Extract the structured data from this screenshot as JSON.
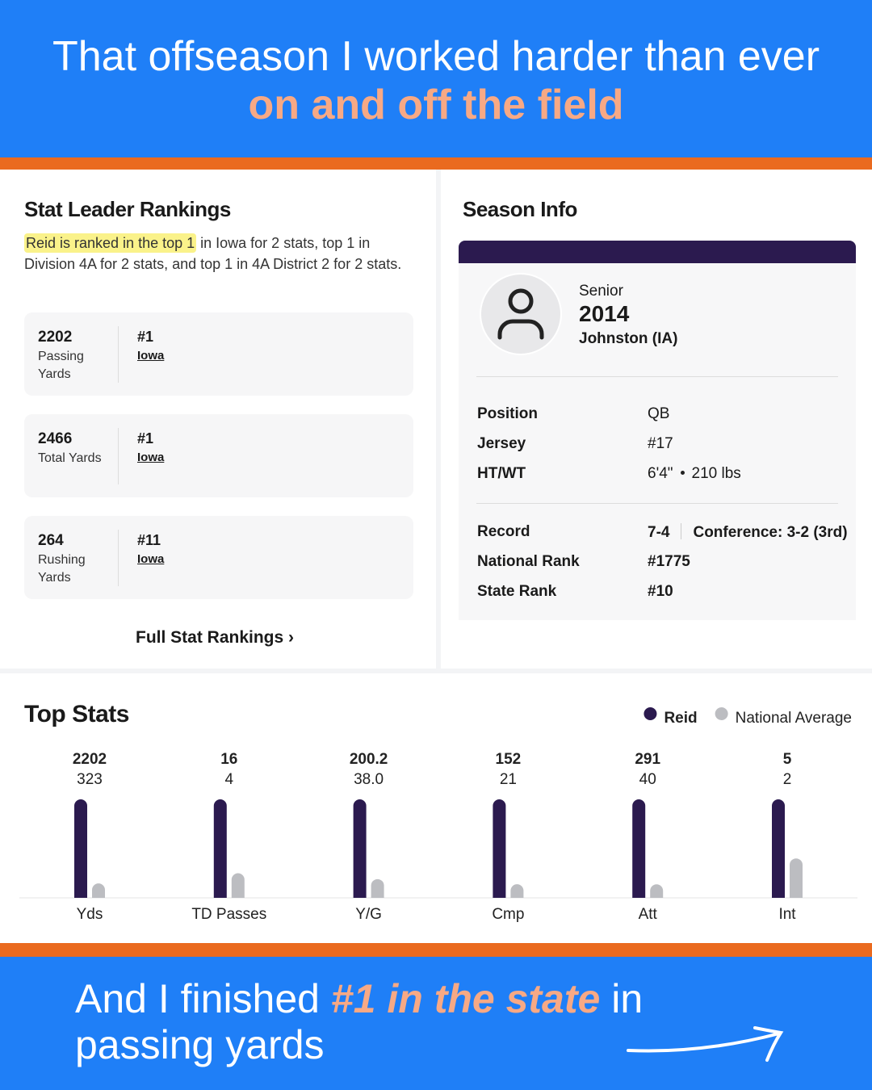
{
  "header": {
    "line1": "That offseason I worked harder than ever",
    "line2": "on and off the field"
  },
  "stat_rankings": {
    "title": "Stat Leader Rankings",
    "highlight": "Reid is ranked in the top 1",
    "description": " in Iowa for 2 stats, top 1 in Division 4A for 2 stats, and top 1 in 4A District 2 for 2 stats.",
    "items": [
      {
        "value": 2202,
        "label": "Passing Yards",
        "rank": "#1",
        "place": "Iowa"
      },
      {
        "value": 2466,
        "label": "Total Yards",
        "rank": "#1",
        "place": "Iowa"
      },
      {
        "value": 264,
        "label": "Rushing Yards",
        "rank": "#11",
        "place": "Iowa"
      }
    ],
    "link": "Full Stat Rankings"
  },
  "season_info": {
    "title": "Season Info",
    "class": "Senior",
    "year": 2014,
    "school": "Johnston (IA)",
    "rows": [
      {
        "label": "Position",
        "value": "QB"
      },
      {
        "label": "Jersey",
        "value": "#17"
      },
      {
        "label": "HT/WT",
        "value": "6'4\"",
        "extra": "210 lbs"
      }
    ],
    "team_rows": [
      {
        "label": "Record",
        "value": "7-4",
        "extra": "Conference: 3-2 (3rd)"
      },
      {
        "label": "National Rank",
        "value": "#1775"
      },
      {
        "label": "State Rank",
        "value": "#10"
      }
    ]
  },
  "top_stats": {
    "type": "bar",
    "title": "Top Stats",
    "categories": [
      "Yds",
      "TD Passes",
      "Y/G",
      "Cmp",
      "Att",
      "Int"
    ],
    "series": [
      {
        "name": "Reid",
        "color": "#2b1a4f",
        "values": [
          2202,
          16,
          200.2,
          152,
          291,
          5
        ]
      },
      {
        "name": "National Average",
        "color": "#bcbdc1",
        "values": [
          323,
          4,
          38.0,
          21,
          40,
          2
        ],
        "value_labels": [
          "323",
          "4",
          "38.0",
          "21",
          "40",
          "2"
        ]
      }
    ]
  },
  "footer": {
    "part1": "And I finished ",
    "highlight": "#1 in the state",
    "part2": " in",
    "line2": "passing yards"
  }
}
